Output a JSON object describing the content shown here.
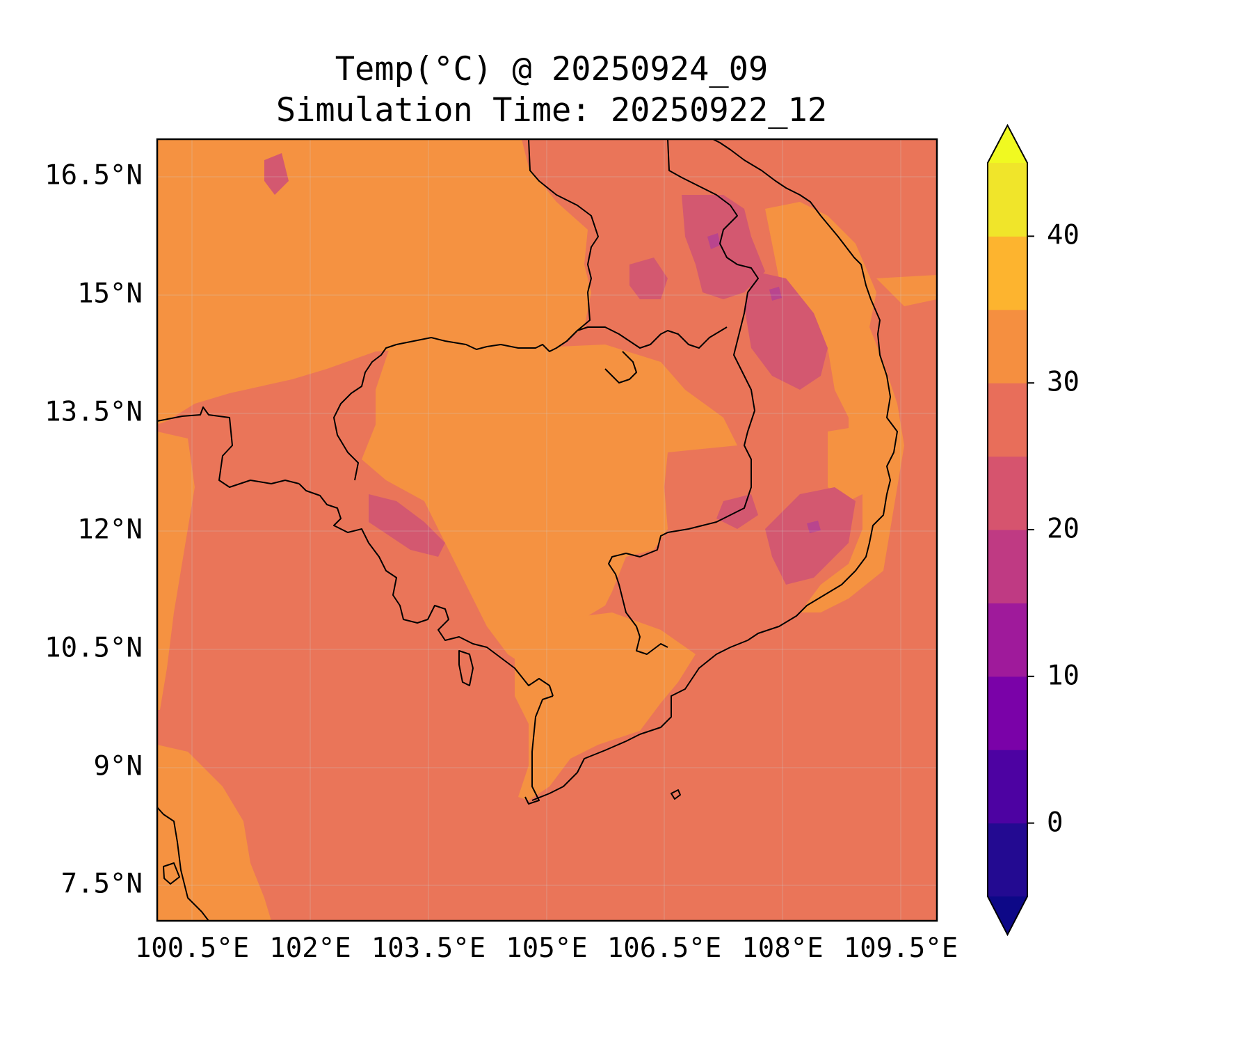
{
  "title": {
    "line1": "Temp(°C) @ 20250924_09",
    "line2": "Simulation Time: 20250922_12"
  },
  "map": {
    "x_ticks": [
      "100.5°E",
      "102°E",
      "103.5°E",
      "105°E",
      "106.5°E",
      "108°E",
      "109.5°E"
    ],
    "y_ticks": [
      "16.5°N",
      "15°N",
      "13.5°N",
      "12°N",
      "10.5°N",
      "9°N",
      "7.5°N"
    ],
    "lon_range": [
      100.5,
      110.4
    ],
    "lat_range": [
      7.05,
      16.95
    ]
  },
  "colorbar": {
    "ticks": [
      "40",
      "30",
      "20",
      "10",
      "0"
    ],
    "range": [
      -5,
      45
    ],
    "step": 5,
    "colors": [
      "#230a91",
      "#4d02a2",
      "#7a02a8",
      "#9f1a9b",
      "#bf3a83",
      "#d6546e",
      "#e86e5a",
      "#f58f40",
      "#fdb42f",
      "#f0e52a"
    ],
    "under_color": "#0d0887",
    "over_color": "#f0f921"
  },
  "colors": {
    "sea": "#ea7559",
    "warm": "#f59241",
    "cool": "#d35870",
    "cold": "#b9458e",
    "coast": "#000000"
  }
}
